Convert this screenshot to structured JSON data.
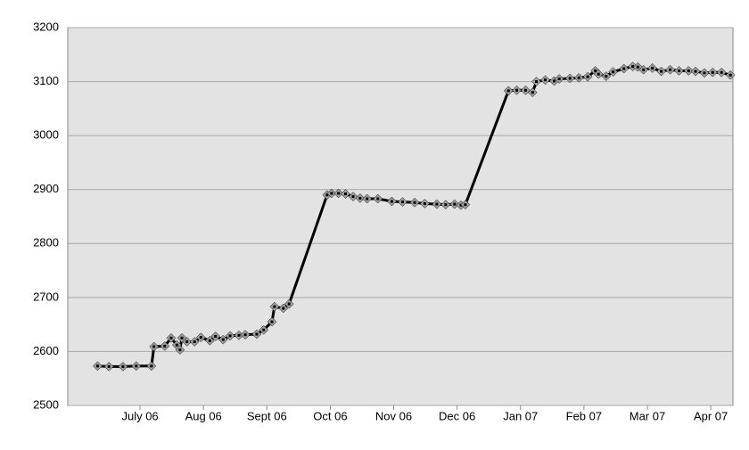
{
  "chart_data": {
    "type": "line",
    "x": [
      -0.67,
      -0.49,
      -0.27,
      -0.06,
      0.18,
      0.22,
      0.39,
      0.49,
      0.58,
      0.63,
      0.66,
      0.74,
      0.86,
      0.96,
      1.1,
      1.19,
      1.31,
      1.42,
      1.56,
      1.66,
      1.84,
      1.95,
      2.08,
      2.12,
      2.26,
      2.35,
      2.95,
      3.02,
      3.13,
      3.24,
      3.36,
      3.47,
      3.58,
      3.75,
      3.97,
      4.14,
      4.33,
      4.49,
      4.68,
      4.82,
      4.96,
      5.06,
      5.13,
      5.81,
      5.94,
      6.08,
      6.19,
      6.25,
      6.39,
      6.53,
      6.61,
      6.78,
      6.92,
      7.06,
      7.18,
      7.23,
      7.35,
      7.46,
      7.63,
      7.77,
      7.85,
      7.94,
      8.08,
      8.22,
      8.36,
      8.5,
      8.65,
      8.76,
      8.9,
      9.03,
      9.17,
      9.31
    ],
    "series": [
      {
        "color": "#000000",
        "marker_color": "#a0a0a0",
        "values": [
          2573,
          2572,
          2572,
          2573,
          2573,
          2609,
          2610,
          2625,
          2612,
          2603,
          2625,
          2618,
          2618,
          2626,
          2620,
          2628,
          2622,
          2629,
          2630,
          2631,
          2632,
          2640,
          2655,
          2683,
          2680,
          2688,
          2890,
          2893,
          2893,
          2892,
          2887,
          2884,
          2883,
          2883,
          2878,
          2877,
          2876,
          2874,
          2873,
          2872,
          2873,
          2871,
          2872,
          3083,
          3084,
          3084,
          3080,
          3100,
          3103,
          3101,
          3105,
          3106,
          3107,
          3109,
          3120,
          3114,
          3110,
          3118,
          3124,
          3128,
          3127,
          3122,
          3125,
          3119,
          3122,
          3120,
          3120,
          3119,
          3116,
          3117,
          3117,
          3112
        ]
      }
    ],
    "xlim": [
      -1.14,
      9.35
    ],
    "xticks": [
      {
        "value": 0,
        "label": "July 06"
      },
      {
        "value": 1,
        "label": "Aug 06"
      },
      {
        "value": 2,
        "label": "Sept 06"
      },
      {
        "value": 3,
        "label": "Oct 06"
      },
      {
        "value": 4,
        "label": "Nov 06"
      },
      {
        "value": 5,
        "label": "Dec 06"
      },
      {
        "value": 6,
        "label": "Jan 07"
      },
      {
        "value": 7,
        "label": "Feb 07"
      },
      {
        "value": 8,
        "label": "Mar 07"
      },
      {
        "value": 9,
        "label": "Apr 07"
      }
    ],
    "ylim": [
      2500,
      3200
    ],
    "yticks": [
      2500,
      2600,
      2700,
      2800,
      2900,
      3000,
      3100,
      3200
    ],
    "grid": true
  }
}
